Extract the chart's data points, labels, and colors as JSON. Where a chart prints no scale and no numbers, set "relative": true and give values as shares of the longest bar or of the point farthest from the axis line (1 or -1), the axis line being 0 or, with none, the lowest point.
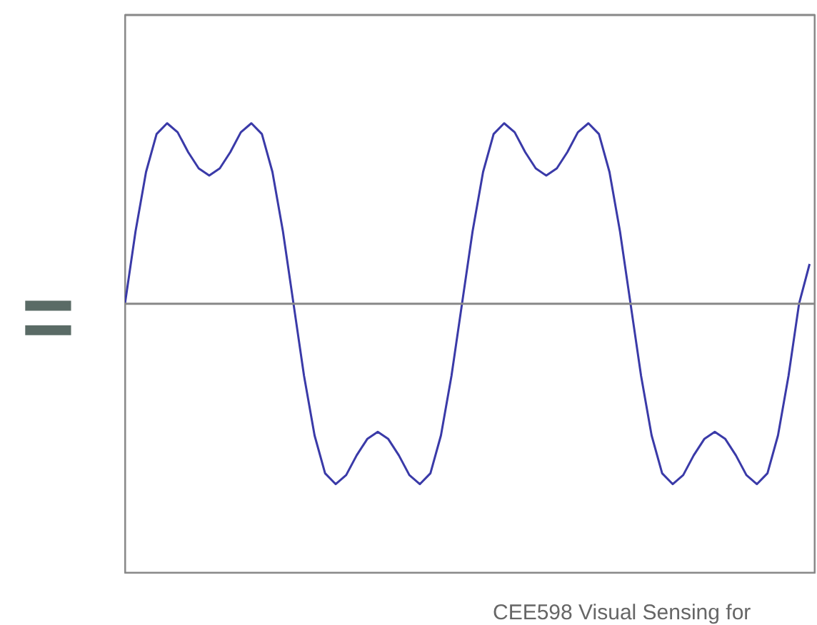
{
  "chart_data": {
    "type": "line",
    "relative": true,
    "categories": [
      null,
      null,
      null,
      null,
      null,
      null,
      null,
      null,
      null,
      null,
      null,
      null,
      null,
      null,
      null,
      null,
      null,
      null,
      null,
      null,
      null,
      null,
      null,
      null,
      null,
      null,
      null,
      null,
      null,
      null,
      null,
      null,
      null,
      null,
      null,
      null,
      null,
      null,
      null,
      null,
      null,
      null,
      null,
      null,
      null,
      null,
      null,
      null,
      null,
      null,
      null,
      null,
      null,
      null,
      null,
      null,
      null,
      null,
      null,
      null,
      null,
      null,
      null,
      null,
      null,
      null
    ],
    "series": [
      {
        "color": "#3a3aa8",
        "values": [
          0,
          0.4,
          0.73,
          0.94,
          1,
          0.95,
          0.84,
          0.75,
          0.71,
          0.75,
          0.84,
          0.95,
          1,
          0.94,
          0.73,
          0.4,
          0,
          -0.4,
          -0.73,
          -0.94,
          -1,
          -0.95,
          -0.84,
          -0.75,
          -0.71,
          -0.75,
          -0.84,
          -0.95,
          -1,
          -0.94,
          -0.73,
          -0.4,
          0,
          0.4,
          0.73,
          0.94,
          1,
          0.95,
          0.84,
          0.75,
          0.71,
          0.75,
          0.84,
          0.95,
          1,
          0.94,
          0.73,
          0.4,
          0,
          -0.4,
          -0.73,
          -0.94,
          -1,
          -0.95,
          -0.84,
          -0.75,
          -0.71,
          -0.75,
          -0.84,
          -0.95,
          -1,
          -0.94,
          -0.73,
          -0.4,
          0,
          0.22
        ]
      }
    ],
    "grid": false,
    "annotations": [
      "=",
      "CEE598 Visual Sensing for"
    ]
  }
}
